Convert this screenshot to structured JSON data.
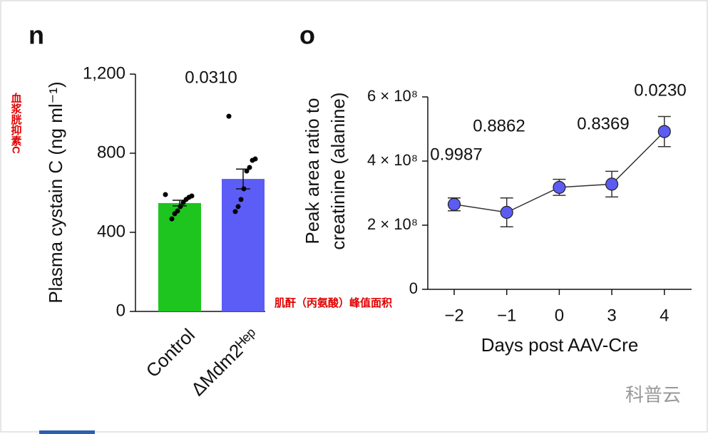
{
  "overlay_labels": [
    "血浆胱抑素C",
    "肌酐（丙氨酸）峰值面积"
  ],
  "watermark": "科普云",
  "chart_data": [
    {
      "type": "bar",
      "panel": "n",
      "ylabel": "Plasma cystain C (ng ml⁻¹)",
      "categories": [
        "Control",
        "ΔMdm2ᴴᵉᵖ"
      ],
      "series": [
        {
          "values": [
            548,
            670
          ],
          "errors": [
            14,
            50
          ],
          "colors": [
            "#1ec51e",
            "#5c5cf6"
          ],
          "points": [
            [
              591,
              584,
              577,
              566,
              551,
              530,
              508,
              494,
              468
            ],
            [
              987,
              771,
              764,
              728,
              710,
              620,
              566,
              530,
              505
            ]
          ]
        }
      ],
      "annotations": [
        "0.0310"
      ],
      "ylim": [
        0,
        1200
      ],
      "yticks": [
        0,
        400,
        800,
        {
          "value": 1200,
          "label": "1,200"
        }
      ]
    },
    {
      "type": "line",
      "panel": "o",
      "ylabel": [
        "Peak area ratio to",
        "creatinine (alanine)"
      ],
      "xlabel": "Days post AAV-Cre",
      "categories": [
        "−2",
        "−1",
        "0",
        "3",
        "4"
      ],
      "series": [
        {
          "values": [
            265000000,
            240000000,
            318000000,
            328000000,
            492000000
          ],
          "errors": [
            20000000,
            45000000,
            25000000,
            40000000,
            47000000
          ],
          "color": "#5c5cf2"
        }
      ],
      "annotations": [
        "0.9987",
        "0.8862",
        "0.8369",
        "0.0230"
      ],
      "ylim": [
        0,
        600000000
      ],
      "yticks": [
        0,
        {
          "value": 200000000,
          "label": "2 × 10⁸"
        },
        {
          "value": 400000000,
          "label": "4 × 10⁸"
        },
        {
          "value": 600000000,
          "label": "6 × 10⁸"
        }
      ]
    }
  ]
}
